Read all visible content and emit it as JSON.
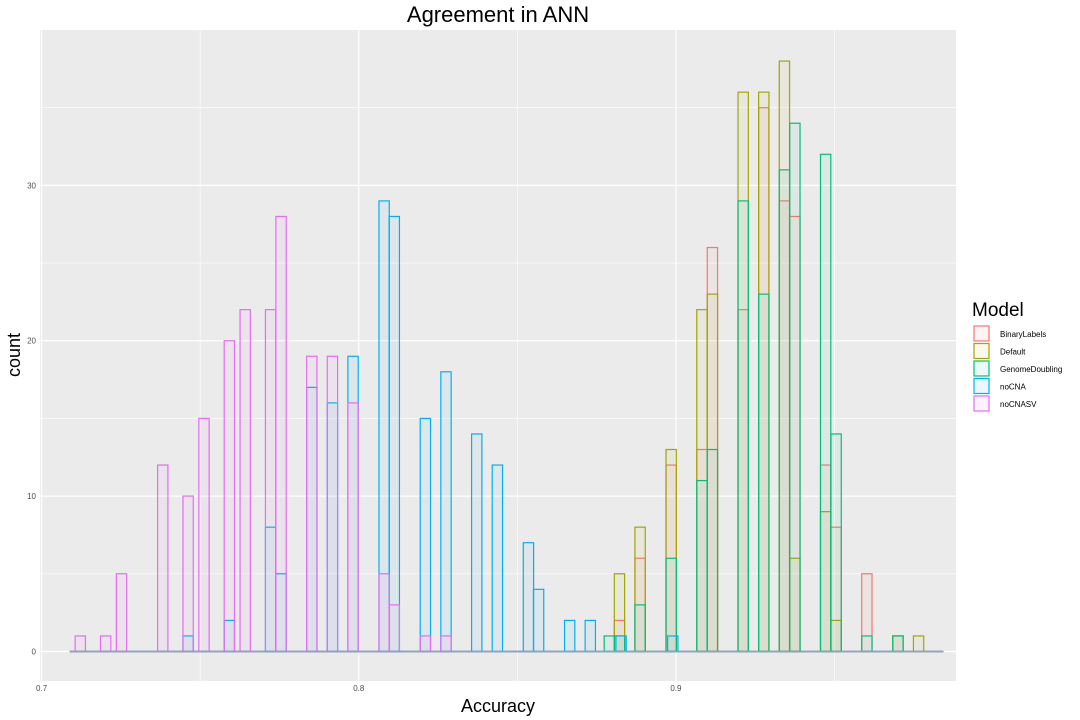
{
  "chart_data": {
    "type": "histogram",
    "title": "Agreement in ANN",
    "xlabel": "Accuracy",
    "ylabel": "count",
    "xlim": [
      0.6995,
      0.9883
    ],
    "ylim": [
      -1.9,
      40
    ],
    "x_ticks": [
      0.7,
      0.8,
      0.9
    ],
    "x_tick_labels": [
      "0.7",
      "0.8",
      "0.9"
    ],
    "y_ticks": [
      0,
      10,
      20,
      30
    ],
    "y_tick_labels": [
      "0",
      "10",
      "20",
      "30"
    ],
    "bin_start": 0.7105,
    "bin_width": 0.00325,
    "legend_title": "Model",
    "series": [
      {
        "name": "BinaryLabels",
        "color": "#F8766D",
        "bars": [
          [
            0.8822,
            2
          ],
          [
            0.8887,
            6
          ],
          [
            0.8985,
            12
          ],
          [
            0.9082,
            13
          ],
          [
            0.9115,
            26
          ],
          [
            0.9212,
            22
          ],
          [
            0.9277,
            35
          ],
          [
            0.9342,
            29
          ],
          [
            0.9375,
            28
          ],
          [
            0.9472,
            12
          ],
          [
            0.9505,
            8
          ],
          [
            0.9602,
            5
          ],
          [
            0.97,
            1
          ]
        ]
      },
      {
        "name": "Default",
        "color": "#A3A500",
        "bars": [
          [
            0.8822,
            5
          ],
          [
            0.8887,
            8
          ],
          [
            0.8985,
            13
          ],
          [
            0.9082,
            22
          ],
          [
            0.9115,
            23
          ],
          [
            0.9212,
            36
          ],
          [
            0.9277,
            36
          ],
          [
            0.9342,
            38
          ],
          [
            0.9375,
            6
          ],
          [
            0.9472,
            9
          ],
          [
            0.9505,
            2
          ],
          [
            0.97,
            1
          ],
          [
            0.9765,
            1
          ]
        ]
      },
      {
        "name": "GenomeDoubling",
        "color": "#00BF7D",
        "bars": [
          [
            0.879,
            1
          ],
          [
            0.8822,
            1
          ],
          [
            0.8887,
            3
          ],
          [
            0.8985,
            6
          ],
          [
            0.9082,
            11
          ],
          [
            0.9115,
            13
          ],
          [
            0.9212,
            29
          ],
          [
            0.9277,
            23
          ],
          [
            0.9342,
            31
          ],
          [
            0.9375,
            34
          ],
          [
            0.9472,
            32
          ],
          [
            0.9505,
            14
          ],
          [
            0.9602,
            1
          ],
          [
            0.97,
            1
          ]
        ]
      },
      {
        "name": "noCNA",
        "color": "#00B0F6",
        "bars": [
          [
            0.7462,
            1
          ],
          [
            0.7592,
            2
          ],
          [
            0.7722,
            8
          ],
          [
            0.7755,
            5
          ],
          [
            0.7852,
            17
          ],
          [
            0.7917,
            16
          ],
          [
            0.7982,
            19
          ],
          [
            0.808,
            29
          ],
          [
            0.8112,
            28
          ],
          [
            0.821,
            15
          ],
          [
            0.8275,
            18
          ],
          [
            0.8372,
            14
          ],
          [
            0.8437,
            12
          ],
          [
            0.8535,
            7
          ],
          [
            0.8567,
            4
          ],
          [
            0.8665,
            2
          ],
          [
            0.873,
            2
          ],
          [
            0.8827,
            1
          ],
          [
            0.899,
            1
          ]
        ]
      },
      {
        "name": "noCNASV",
        "color": "#E76BF3",
        "bars": [
          [
            0.7122,
            1
          ],
          [
            0.7202,
            1
          ],
          [
            0.7252,
            5
          ],
          [
            0.7382,
            12
          ],
          [
            0.7462,
            10
          ],
          [
            0.7512,
            15
          ],
          [
            0.7592,
            20
          ],
          [
            0.7642,
            22
          ],
          [
            0.7722,
            22
          ],
          [
            0.7755,
            28
          ],
          [
            0.7852,
            19
          ],
          [
            0.7917,
            19
          ],
          [
            0.7982,
            16
          ],
          [
            0.808,
            5
          ],
          [
            0.8112,
            3
          ],
          [
            0.821,
            1
          ],
          [
            0.8275,
            1
          ]
        ]
      }
    ]
  }
}
